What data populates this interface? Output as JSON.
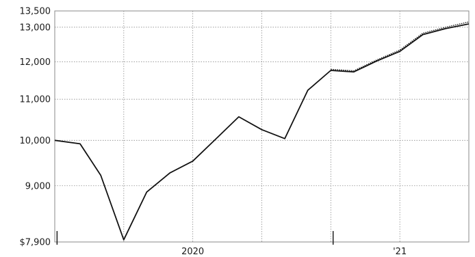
{
  "chart_data": {
    "type": "line",
    "title": "",
    "xlabel": "",
    "ylabel": "",
    "y_scale": "log",
    "ylim": [
      7900,
      13500
    ],
    "y_ticks": [
      {
        "value": 7900,
        "label": "$7,900"
      },
      {
        "value": 9000,
        "label": "9,000"
      },
      {
        "value": 10000,
        "label": "10,000"
      },
      {
        "value": 11000,
        "label": "11,000"
      },
      {
        "value": 12000,
        "label": "12,000"
      },
      {
        "value": 13000,
        "label": "13,000"
      },
      {
        "value": 13500,
        "label": "13,500"
      }
    ],
    "x_range": [
      0,
      18
    ],
    "x_ticks": [
      {
        "value": 6,
        "label": "2020"
      },
      {
        "value": 15,
        "label": "'21"
      }
    ],
    "x_markers": [
      0.1,
      12.1
    ],
    "grid": true,
    "series": [
      {
        "style": "solid",
        "x": [
          0,
          1.1,
          2.0,
          3.0,
          4.0,
          5.0,
          6.0,
          7.0,
          8.0,
          9.0,
          10.0,
          11.0,
          12.0,
          13.0,
          14.0,
          15.0,
          16.0,
          17.0,
          18.0
        ],
        "values": [
          10000,
          9920,
          9220,
          7940,
          8870,
          9270,
          9530,
          10030,
          10560,
          10250,
          10040,
          11230,
          11760,
          11720,
          12020,
          12290,
          12780,
          12960,
          13100
        ]
      },
      {
        "style": "dotted",
        "x": [
          12.0,
          13.0,
          14.0,
          15.0,
          16.0,
          17.0,
          18.0
        ],
        "values": [
          11790,
          11750,
          12050,
          12330,
          12820,
          13000,
          13160
        ]
      }
    ]
  }
}
